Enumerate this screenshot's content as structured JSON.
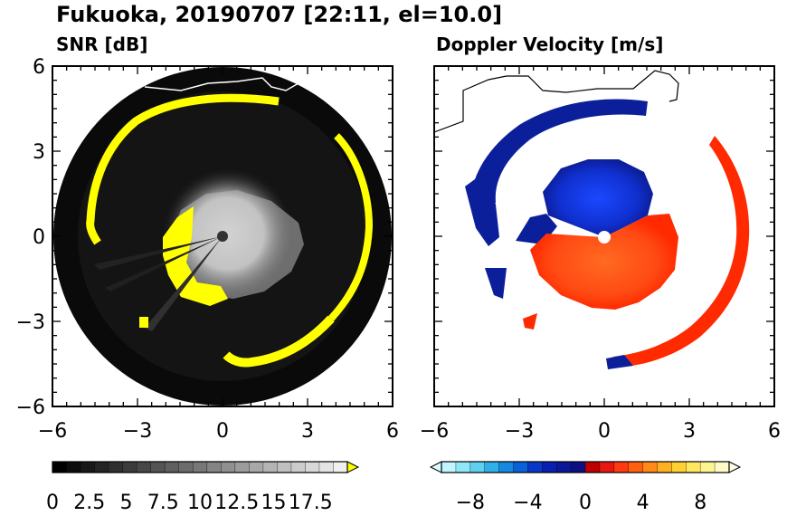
{
  "title": "Fukuoka, 20190707 [22:11, el=10.0]",
  "chart_data": [
    {
      "type": "heatmap",
      "panel_title": "SNR [dB]",
      "x_ticks": [
        -6,
        -3,
        0,
        3,
        6
      ],
      "y_ticks": [
        -6,
        -3,
        0,
        3,
        6
      ],
      "xlim": [
        -6,
        6
      ],
      "ylim": [
        -6,
        6
      ],
      "colorbar": {
        "ticks": [
          "0",
          "2.5",
          "5",
          "7.5",
          "10",
          "12.5",
          "15",
          "17.5"
        ],
        "range": [
          0,
          20
        ],
        "colors": [
          "#000000",
          "#0c0c0c",
          "#181818",
          "#242424",
          "#303030",
          "#3c3c3c",
          "#484848",
          "#545454",
          "#606060",
          "#6c6c6c",
          "#787878",
          "#848484",
          "#909090",
          "#9c9c9c",
          "#a8a8a8",
          "#b4b4b4",
          "#c0c0c0",
          "#cccccc",
          "#d8d8d8",
          "#e4e4e4",
          "#f0f0f0"
        ],
        "over_color": "#ffff00"
      },
      "colors": {
        "background": "#0a0a0a",
        "ring": "#ffff00",
        "center": "#d8d8d8"
      }
    },
    {
      "type": "heatmap",
      "panel_title": "Doppler Velocity [m/s]",
      "x_ticks": [
        -6,
        -3,
        0,
        3,
        6
      ],
      "y_ticks": [
        -6,
        -3,
        0,
        3,
        6
      ],
      "xlim": [
        -6,
        6
      ],
      "ylim": [
        -6,
        6
      ],
      "colorbar": {
        "ticks": [
          "−8",
          "−4",
          "0",
          "4",
          "8"
        ],
        "range": [
          -10,
          10
        ],
        "colors": [
          "#bff6ff",
          "#8fe8f8",
          "#5fd0f0",
          "#30b0e8",
          "#1688e0",
          "#0a60d8",
          "#0838c8",
          "#0820b0",
          "#0a1898",
          "#0c1080",
          "#c00000",
          "#e81810",
          "#ff3a10",
          "#ff6010",
          "#ff8a18",
          "#ffb020",
          "#ffd030",
          "#ffe860",
          "#fff590",
          "#fffbc8"
        ],
        "under_color": "#dffbff",
        "over_color": "#fffde8"
      },
      "colors": {
        "negative": "#0c1f9a",
        "negative_inner": "#1638d8",
        "positive": "#ff4a14",
        "positive_outer": "#ff2a00"
      }
    }
  ]
}
